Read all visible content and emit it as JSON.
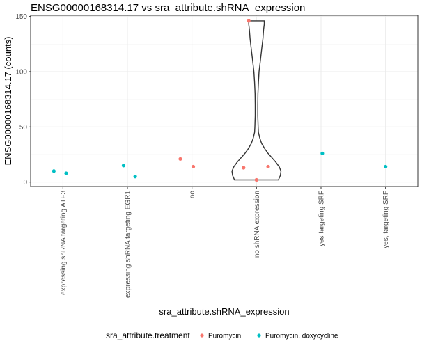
{
  "chart_data": {
    "type": "scatter",
    "title": "ENSG00000168314.17 vs sra_attribute.shRNA_expression",
    "xlabel": "sra_attribute.shRNA_expression",
    "ylabel": "ENSG00000168314.17 (counts)",
    "categories": [
      "expressing shRNA targeting ATF3",
      "expressing shRNA targeting EGR1",
      "no",
      "no shRNA expression",
      "yes targeting SRF",
      "yes, targeting SRF"
    ],
    "ylim": [
      -4,
      151
    ],
    "yticks": [
      0,
      50,
      100,
      150
    ],
    "grid": true,
    "legend": {
      "title": "sra_attribute.treatment",
      "placement": "bottom"
    },
    "series": [
      {
        "name": "Puromycin",
        "color": "#F8766D",
        "points": [
          {
            "category": "no",
            "offset": -0.18,
            "y": 21
          },
          {
            "category": "no",
            "offset": 0.02,
            "y": 14
          },
          {
            "category": "no shRNA expression",
            "offset": -0.12,
            "y": 146
          },
          {
            "category": "no shRNA expression",
            "offset": -0.2,
            "y": 13
          },
          {
            "category": "no shRNA expression",
            "offset": 0.18,
            "y": 14
          },
          {
            "category": "no shRNA expression",
            "offset": 0.0,
            "y": 2
          }
        ]
      },
      {
        "name": "Puromycin, doxycycline",
        "color": "#00BFC4",
        "points": [
          {
            "category": "expressing shRNA targeting ATF3",
            "offset": -0.14,
            "y": 10
          },
          {
            "category": "expressing shRNA targeting ATF3",
            "offset": 0.05,
            "y": 8
          },
          {
            "category": "expressing shRNA targeting EGR1",
            "offset": -0.06,
            "y": 15
          },
          {
            "category": "expressing shRNA targeting EGR1",
            "offset": 0.12,
            "y": 5
          },
          {
            "category": "yes targeting SRF",
            "offset": 0.02,
            "y": 26
          },
          {
            "category": "yes, targeting SRF",
            "offset": 0.0,
            "y": 14
          }
        ]
      }
    ],
    "violin": {
      "category": "no shRNA expression",
      "profile": [
        [
          2,
          0.34
        ],
        [
          6,
          0.37
        ],
        [
          10,
          0.38
        ],
        [
          14,
          0.35
        ],
        [
          18,
          0.3
        ],
        [
          22,
          0.24
        ],
        [
          26,
          0.18
        ],
        [
          30,
          0.13
        ],
        [
          35,
          0.08
        ],
        [
          40,
          0.05
        ],
        [
          45,
          0.03
        ],
        [
          50,
          0.025
        ],
        [
          60,
          0.02
        ],
        [
          70,
          0.02
        ],
        [
          80,
          0.022
        ],
        [
          90,
          0.03
        ],
        [
          100,
          0.04
        ],
        [
          110,
          0.06
        ],
        [
          120,
          0.08
        ],
        [
          130,
          0.1
        ],
        [
          138,
          0.11
        ],
        [
          143,
          0.12
        ],
        [
          146,
          0.12
        ]
      ]
    }
  }
}
